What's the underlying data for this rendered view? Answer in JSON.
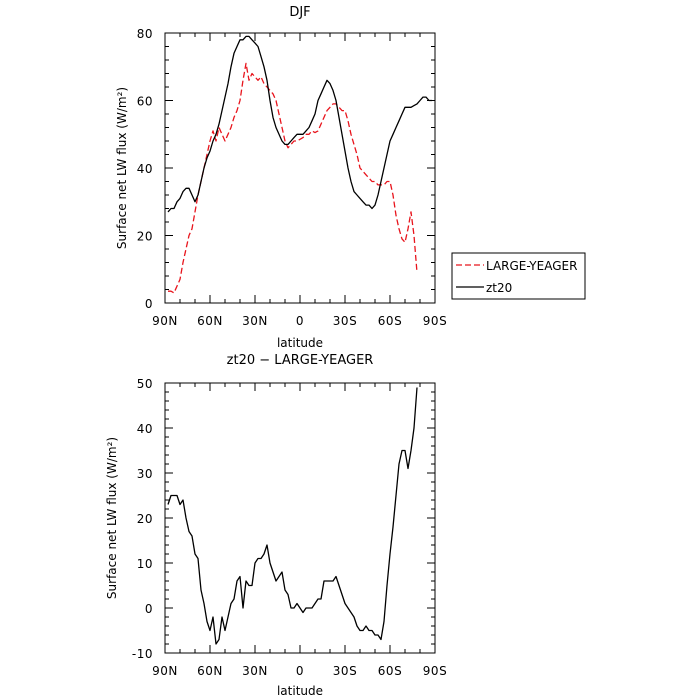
{
  "chart_data": [
    {
      "type": "line",
      "title": "DJF",
      "xlabel": "latitude",
      "ylabel": "Surface net LW flux (W/m²)",
      "xlim": [
        90,
        -90
      ],
      "ylim": [
        0,
        80
      ],
      "xticks": [
        {
          "value": 90,
          "label": "90N"
        },
        {
          "value": 60,
          "label": "60N"
        },
        {
          "value": 30,
          "label": "30N"
        },
        {
          "value": 0,
          "label": "0"
        },
        {
          "value": -30,
          "label": "30S"
        },
        {
          "value": -60,
          "label": "60S"
        },
        {
          "value": -90,
          "label": "90S"
        }
      ],
      "yticks": [
        0,
        20,
        40,
        60,
        80
      ],
      "legend": {
        "position": "right"
      },
      "series": [
        {
          "name": "LARGE-YEAGER",
          "color": "#e8141c",
          "dash": "dashed",
          "x": [
            88,
            86,
            84,
            82,
            80,
            78,
            76,
            74,
            72,
            70,
            68,
            66,
            64,
            62,
            60,
            58,
            56,
            54,
            52,
            50,
            48,
            46,
            44,
            42,
            40,
            38,
            36,
            34,
            32,
            30,
            28,
            26,
            24,
            22,
            20,
            18,
            16,
            14,
            12,
            10,
            8,
            6,
            4,
            2,
            0,
            -2,
            -4,
            -6,
            -8,
            -10,
            -12,
            -14,
            -16,
            -18,
            -20,
            -22,
            -24,
            -26,
            -28,
            -30,
            -32,
            -34,
            -36,
            -38,
            -40,
            -42,
            -44,
            -46,
            -48,
            -50,
            -52,
            -54,
            -56,
            -58,
            -60,
            -62,
            -64,
            -66,
            -68,
            -70,
            -72,
            -74,
            -76,
            -78
          ],
          "y": [
            3.5,
            3.5,
            3.0,
            5.0,
            7.0,
            12,
            16,
            20,
            22,
            27,
            32,
            36,
            40,
            44,
            48,
            51,
            48,
            52,
            50,
            48,
            50,
            52,
            55,
            57,
            60,
            66,
            71,
            66,
            68,
            67,
            66,
            67,
            65,
            64,
            63,
            62,
            60,
            56,
            52,
            48,
            46,
            47,
            48,
            48,
            48.5,
            49,
            50,
            50,
            51,
            50.5,
            51,
            53,
            55,
            57,
            58,
            59,
            59,
            58,
            57,
            57,
            54,
            50,
            47,
            44,
            40,
            39,
            38,
            37,
            36,
            36,
            35,
            35,
            35,
            36,
            36,
            32,
            26,
            22,
            19,
            18,
            22,
            27,
            20,
            9
          ]
        },
        {
          "name": "zt20",
          "color": "#000000",
          "dash": "solid",
          "x": [
            88,
            86,
            84,
            82,
            80,
            78,
            76,
            74,
            72,
            70,
            68,
            66,
            64,
            62,
            60,
            58,
            56,
            54,
            52,
            50,
            48,
            46,
            44,
            42,
            40,
            38,
            36,
            34,
            32,
            30,
            28,
            26,
            24,
            22,
            20,
            18,
            16,
            14,
            12,
            10,
            8,
            6,
            4,
            2,
            0,
            -2,
            -4,
            -6,
            -8,
            -10,
            -12,
            -14,
            -16,
            -18,
            -20,
            -22,
            -24,
            -26,
            -28,
            -30,
            -32,
            -34,
            -36,
            -38,
            -40,
            -42,
            -44,
            -46,
            -48,
            -50,
            -52,
            -54,
            -56,
            -58,
            -60,
            -62,
            -64,
            -66,
            -68,
            -70,
            -72,
            -74,
            -76,
            -78,
            -80,
            -82,
            -84,
            -86,
            -88
          ],
          "y": [
            27,
            28,
            28,
            30,
            31,
            33,
            34,
            34,
            32,
            30,
            32,
            36,
            40,
            43,
            45,
            48,
            50,
            53,
            57,
            61,
            65,
            70,
            74,
            76,
            78,
            78,
            79,
            79,
            78,
            77,
            76,
            73,
            70,
            66,
            60,
            55,
            52,
            50,
            48,
            47,
            47,
            48,
            49,
            50,
            50,
            50,
            51,
            52,
            54,
            56,
            60,
            62,
            64,
            66,
            65,
            63,
            60,
            55,
            50,
            45,
            40,
            36,
            33,
            32,
            31,
            30,
            29,
            29,
            28,
            29,
            32,
            36,
            40,
            44,
            48,
            50,
            52,
            54,
            56,
            58,
            58,
            58,
            58.5,
            59,
            60,
            61,
            61,
            60,
            60
          ]
        }
      ]
    },
    {
      "type": "line",
      "title": "zt20 − LARGE-YEAGER",
      "xlabel": "latitude",
      "ylabel": "Surface net LW flux (W/m²)",
      "xlim": [
        90,
        -90
      ],
      "ylim": [
        -10,
        50
      ],
      "xticks": [
        {
          "value": 90,
          "label": "90N"
        },
        {
          "value": 60,
          "label": "60N"
        },
        {
          "value": 30,
          "label": "30N"
        },
        {
          "value": 0,
          "label": "0"
        },
        {
          "value": -30,
          "label": "30S"
        },
        {
          "value": -60,
          "label": "60S"
        },
        {
          "value": -90,
          "label": "90S"
        }
      ],
      "yticks": [
        -10,
        0,
        10,
        20,
        30,
        40,
        50
      ],
      "series": [
        {
          "color": "#000000",
          "dash": "solid",
          "x": [
            88,
            86,
            84,
            82,
            80,
            78,
            76,
            74,
            72,
            70,
            68,
            66,
            64,
            62,
            60,
            58,
            56,
            54,
            52,
            50,
            48,
            46,
            44,
            42,
            40,
            38,
            36,
            34,
            32,
            30,
            28,
            26,
            24,
            22,
            20,
            18,
            16,
            14,
            12,
            10,
            8,
            6,
            4,
            2,
            0,
            -2,
            -4,
            -6,
            -8,
            -10,
            -12,
            -14,
            -16,
            -18,
            -20,
            -22,
            -24,
            -26,
            -28,
            -30,
            -32,
            -34,
            -36,
            -38,
            -40,
            -42,
            -44,
            -46,
            -48,
            -50,
            -52,
            -54,
            -56,
            -58,
            -60,
            -62,
            -64,
            -66,
            -68,
            -70,
            -72,
            -74,
            -76,
            -78
          ],
          "y": [
            23,
            25,
            25,
            25,
            23,
            24,
            20,
            17,
            16,
            12,
            11,
            4,
            1,
            -3,
            -5,
            -2,
            -8,
            -7,
            -2,
            -5,
            -2,
            1,
            2,
            6,
            7,
            0,
            6,
            5,
            5,
            10,
            11,
            11,
            12,
            14,
            10,
            8,
            6,
            7,
            8,
            4,
            3,
            0,
            0,
            1,
            0,
            -1,
            0,
            0,
            0,
            1,
            2,
            2,
            6,
            6,
            6,
            6,
            7,
            5,
            3,
            1,
            0,
            -1,
            -2,
            -4,
            -5,
            -5,
            -4,
            -5,
            -5,
            -6,
            -6,
            -7,
            -3,
            5,
            12,
            18,
            25,
            32,
            35,
            35,
            31,
            35,
            40,
            49
          ]
        }
      ]
    }
  ]
}
